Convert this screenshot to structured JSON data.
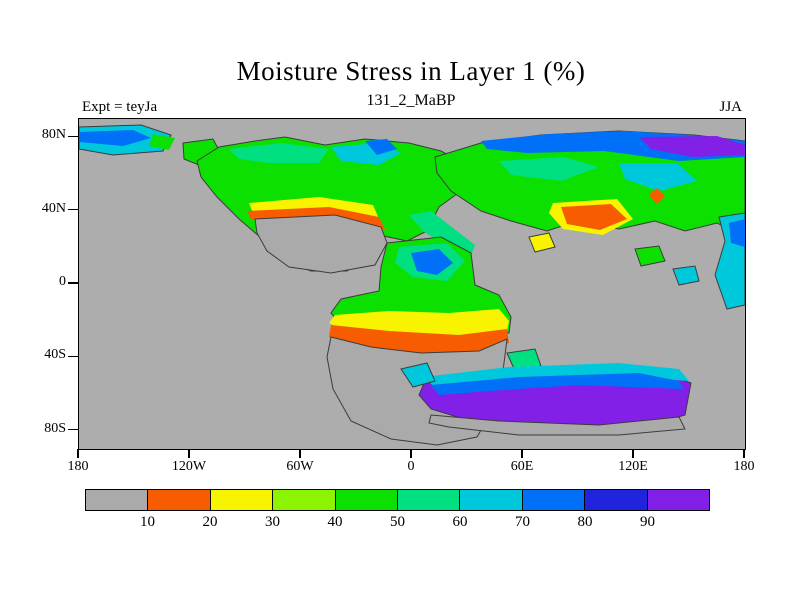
{
  "chart_data": {
    "type": "heatmap",
    "subtype": "filled_contour_map",
    "title": "Moisture Stress in Layer 1 (%)",
    "subtitle": "131_2_MaBP",
    "annotations": {
      "top_left": "Expt = teyJa",
      "top_right": "JJA"
    },
    "x_axis": {
      "min": -180,
      "max": 180,
      "ticks": [
        {
          "label": "180",
          "value": -180
        },
        {
          "label": "120W",
          "value": -120
        },
        {
          "label": "60W",
          "value": -60
        },
        {
          "label": "0",
          "value": 0
        },
        {
          "label": "60E",
          "value": 60
        },
        {
          "label": "120E",
          "value": 120
        },
        {
          "label": "180",
          "value": 180
        }
      ]
    },
    "y_axis": {
      "min": -90,
      "max": 90,
      "ticks": [
        {
          "label": "80N",
          "value": 80
        },
        {
          "label": "40N",
          "value": 40
        },
        {
          "label": "0",
          "value": 0
        },
        {
          "label": "40S",
          "value": -40
        },
        {
          "label": "80S",
          "value": -80
        }
      ]
    },
    "colorbar": {
      "position": "bottom",
      "levels": [
        10,
        20,
        30,
        40,
        50,
        60,
        70,
        80,
        90
      ],
      "colors": [
        "#aaaaaa",
        "#f85c00",
        "#f8f400",
        "#8cf400",
        "#0ce000",
        "#00e080",
        "#00c8dc",
        "#0070f8",
        "#2024dc",
        "#8220e8"
      ]
    },
    "map": {
      "ocean_color": "#adadad",
      "outline_color": "#3c3c3c",
      "regions": [
        {
          "c": 6,
          "o": 1,
          "p": "0,8 62,6 92,16 84,32 34,36 0,30"
        },
        {
          "c": 7,
          "p": "0,13 54,11 72,19 44,27 0,23"
        },
        {
          "c": 4,
          "p": "74,15 96,19 90,31 70,27"
        },
        {
          "c": 4,
          "o": 1,
          "p": "104,24 134,20 142,35 120,46 105,40"
        },
        {
          "c": 4,
          "o": 1,
          "p": "118,42 140,28 176,22 206,18 246,26 286,20 330,24 362,32 388,46 382,72 360,88 348,112 328,122 300,116 288,138 268,152 232,152 206,142 188,124 160,100 138,78 122,58"
        },
        {
          "c": 5,
          "p": "150,30 202,24 250,30 240,44 190,44 160,40"
        },
        {
          "c": 6,
          "p": "252,28 300,24 322,34 300,46 262,42"
        },
        {
          "c": 7,
          "p": "286,22 308,20 318,30 298,36"
        },
        {
          "c": 2,
          "p": "170,84 240,78 294,86 300,100 266,104 196,100 174,94"
        },
        {
          "c": 1,
          "p": "168,92 250,88 300,98 306,110 272,112 200,108 172,100"
        },
        {
          "c": 0,
          "o": 1,
          "p": "176,100 256,96 302,108 308,124 296,146 252,154 210,148 188,132 178,114"
        },
        {
          "c": 5,
          "p": "330,96 352,92 396,126 390,142 344,112"
        },
        {
          "c": 4,
          "o": 1,
          "p": "356,38 402,24 462,16 540,12 615,16 666,22 666,118 638,104 606,112 576,102 540,110 498,102 468,112 432,102 402,92 372,72 358,54"
        },
        {
          "c": 7,
          "p": "402,22 470,15 545,12 612,16 666,22 666,38 600,42 525,32 448,34 408,30"
        },
        {
          "c": 9,
          "p": "560,18 638,17 666,26 666,36 614,38 572,30"
        },
        {
          "c": 5,
          "p": "420,42 485,38 520,48 482,62 432,56"
        },
        {
          "c": 6,
          "p": "540,44 598,44 618,62 580,72 546,60"
        },
        {
          "c": 2,
          "p": "474,84 538,80 554,100 524,116 484,110 470,94"
        },
        {
          "c": 1,
          "p": "482,88 532,85 548,100 521,111 488,105"
        },
        {
          "c": 1,
          "p": "570,76 578,69 586,77 578,85"
        },
        {
          "c": 6,
          "o": 1,
          "p": "640,98 666,94 666,186 648,190 636,156 646,122"
        },
        {
          "c": 7,
          "p": "650,104 666,100 666,128 652,124"
        },
        {
          "c": 2,
          "o": 1,
          "p": "450,118 470,114 476,128 456,133"
        },
        {
          "c": 4,
          "o": 1,
          "p": "556,130 580,127 586,142 562,147"
        },
        {
          "c": 6,
          "o": 1,
          "p": "594,150 616,147 620,162 600,166"
        },
        {
          "c": 5,
          "o": 1,
          "p": "428,234 456,230 462,247 436,252"
        },
        {
          "c": 4,
          "o": 1,
          "p": "308,124 362,118 392,134 396,166 420,176 432,198 430,214 398,212 352,214 300,210 262,206 252,194 262,180 300,172 302,148"
        },
        {
          "c": 5,
          "p": "320,128 368,124 386,142 368,162 334,158 316,144"
        },
        {
          "c": 7,
          "p": "332,134 360,130 374,144 358,156 338,152"
        },
        {
          "c": 2,
          "p": "256,196 310,192 370,194 420,190 430,202 428,212 380,216 310,214 262,210 250,204"
        },
        {
          "c": 1,
          "p": "252,206 310,212 380,216 428,210 430,224 396,234 330,236 276,230 250,218"
        },
        {
          "c": 0,
          "o": 1,
          "p": "252,218 292,228 342,234 400,232 428,220 424,252 414,290 398,318 358,326 312,320 272,302 254,270 248,238"
        },
        {
          "c": 9,
          "o": 1,
          "p": "346,262 420,252 500,248 580,252 612,264 606,296 558,310 468,312 398,304 352,290 340,276"
        },
        {
          "c": 6,
          "p": "344,258 430,248 540,244 600,250 610,262 520,256 420,260 356,268"
        },
        {
          "c": 7,
          "p": "352,266 440,258 560,254 600,262 604,270 500,266 410,272 360,276"
        },
        {
          "c": 0,
          "o": 1,
          "p": "352,296 420,302 520,306 600,298 606,310 540,316 440,316 370,308 350,304"
        },
        {
          "c": 6,
          "o": 1,
          "p": "322,250 348,244 356,262 334,268"
        }
      ]
    }
  }
}
